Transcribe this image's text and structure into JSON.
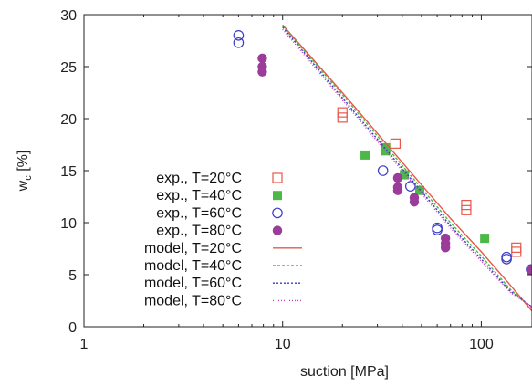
{
  "chart_data": {
    "type": "scatter",
    "xlabel": "suction [MPa]",
    "ylabel": "w",
    "ylabel_sub": "c",
    "ylabel_unit": " [%]",
    "xscale": "log",
    "xlim": [
      1,
      180
    ],
    "ylim": [
      0,
      30
    ],
    "x_ticks": [
      {
        "value": 1,
        "label": "1"
      },
      {
        "value": 10,
        "label": "10"
      },
      {
        "value": 100,
        "label": "100"
      }
    ],
    "y_ticks": [
      {
        "value": 0,
        "label": "0"
      },
      {
        "value": 5,
        "label": "5"
      },
      {
        "value": 10,
        "label": "10"
      },
      {
        "value": 15,
        "label": "15"
      },
      {
        "value": 20,
        "label": "20"
      },
      {
        "value": 25,
        "label": "25"
      },
      {
        "value": 30,
        "label": "30"
      }
    ],
    "legend_position": "bottom-left",
    "series": [
      {
        "name": "exp., T=20°C",
        "kind": "points",
        "marker": "square-open",
        "color": "#e8574a",
        "points": [
          [
            20,
            20.6
          ],
          [
            20,
            20.1
          ],
          [
            37,
            17.6
          ],
          [
            84,
            11.7
          ],
          [
            84,
            11.2
          ],
          [
            150,
            7.6
          ],
          [
            150,
            7.2
          ]
        ]
      },
      {
        "name": "exp., T=40°C",
        "kind": "points",
        "marker": "square-filled",
        "color": "#4db848",
        "points": [
          [
            26,
            16.5
          ],
          [
            33,
            17.2
          ],
          [
            33,
            16.9
          ],
          [
            41,
            14.6
          ],
          [
            49,
            13.1
          ],
          [
            104,
            8.5
          ]
        ]
      },
      {
        "name": "exp., T=60°C",
        "kind": "points",
        "marker": "circle-open",
        "color": "#3b3bc8",
        "points": [
          [
            6,
            28.0
          ],
          [
            6,
            27.3
          ],
          [
            32,
            15.0
          ],
          [
            44,
            13.5
          ],
          [
            60,
            9.5
          ],
          [
            60,
            9.3
          ],
          [
            134,
            6.7
          ],
          [
            134,
            6.5
          ],
          [
            178,
            5.5
          ]
        ]
      },
      {
        "name": "exp., T=80°C",
        "kind": "points",
        "marker": "circle-filled",
        "color": "#9b3c9a",
        "points": [
          [
            7.9,
            25.8
          ],
          [
            7.9,
            25.0
          ],
          [
            7.9,
            24.5
          ],
          [
            38,
            14.3
          ],
          [
            38,
            13.4
          ],
          [
            38,
            13.1
          ],
          [
            46,
            12.4
          ],
          [
            46,
            12.0
          ],
          [
            66,
            8.5
          ],
          [
            66,
            8.0
          ],
          [
            66,
            7.6
          ],
          [
            178,
            5.4
          ]
        ]
      },
      {
        "name": "model, T=20°C",
        "kind": "line",
        "dash": "",
        "color": "#e8574a",
        "points": [
          [
            10,
            29.0
          ],
          [
            20,
            22.5
          ],
          [
            40,
            15.8
          ],
          [
            70,
            10.4
          ],
          [
            100,
            7.2
          ],
          [
            140,
            4.0
          ],
          [
            180,
            1.5
          ]
        ]
      },
      {
        "name": "model, T=40°C",
        "kind": "line",
        "dash": "3,2",
        "color": "#4db848",
        "points": [
          [
            10,
            28.9
          ],
          [
            20,
            22.3
          ],
          [
            40,
            15.5
          ],
          [
            70,
            10.0
          ],
          [
            100,
            6.8
          ],
          [
            140,
            3.6
          ],
          [
            180,
            1.8
          ]
        ]
      },
      {
        "name": "model, T=60°C",
        "kind": "line",
        "dash": "2,2",
        "color": "#3b3bc8",
        "points": [
          [
            10,
            28.8
          ],
          [
            20,
            22.0
          ],
          [
            40,
            15.2
          ],
          [
            70,
            9.7
          ],
          [
            100,
            6.5
          ],
          [
            140,
            3.4
          ],
          [
            180,
            1.9
          ]
        ]
      },
      {
        "name": "model, T=80°C",
        "kind": "line",
        "dash": "1,2",
        "color": "#c040c0",
        "points": [
          [
            10,
            28.6
          ],
          [
            20,
            21.8
          ],
          [
            40,
            15.0
          ],
          [
            70,
            9.5
          ],
          [
            100,
            6.3
          ],
          [
            140,
            3.3
          ],
          [
            180,
            1.9
          ]
        ]
      }
    ]
  }
}
